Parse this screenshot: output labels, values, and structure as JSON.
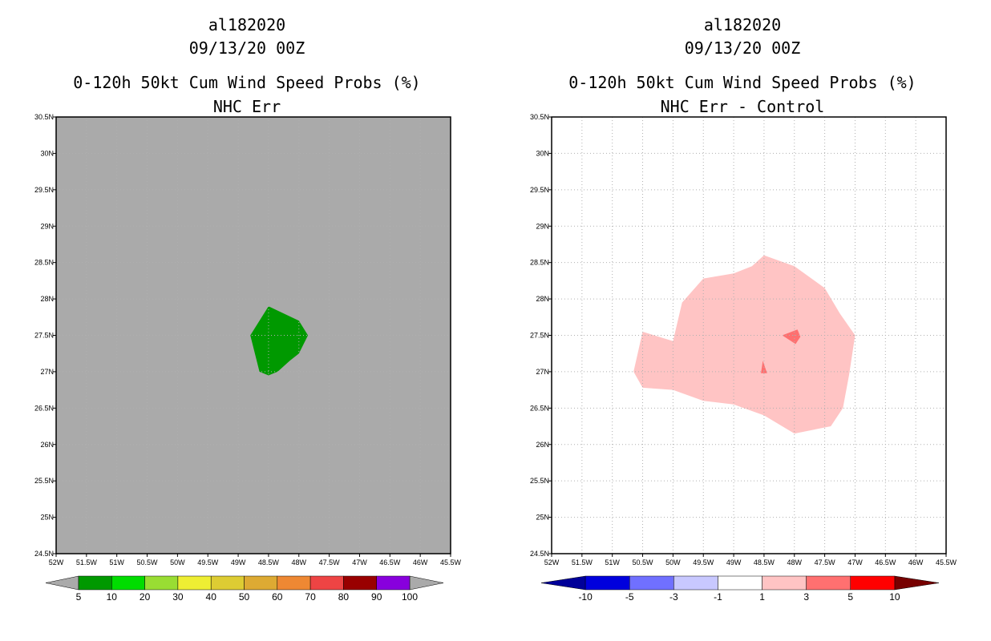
{
  "chart_data": [
    {
      "type": "contour-map",
      "title_lines": [
        "al182020",
        "09/13/20 00Z",
        "0-120h 50kt Cum Wind Speed Probs (%)",
        "NHC Err"
      ],
      "x_tick_labels": [
        "52W",
        "51.5W",
        "51W",
        "50.5W",
        "50W",
        "49.5W",
        "49W",
        "48.5W",
        "48W",
        "47.5W",
        "47W",
        "46.5W",
        "46W",
        "45.5W"
      ],
      "y_tick_labels": [
        "24.5N",
        "25N",
        "25.5N",
        "26N",
        "26.5N",
        "27N",
        "27.5N",
        "28N",
        "28.5N",
        "29N",
        "29.5N",
        "30N",
        "30.5N"
      ],
      "lon_range": [
        -52,
        -45.5
      ],
      "lat_range": [
        24.5,
        30.5
      ],
      "background_color": "#aaaaaa",
      "grid": true,
      "contours": [
        {
          "level": "5-10",
          "color": "#009900",
          "polygon": [
            [
              -48.5,
              27.9
            ],
            [
              -48.0,
              27.7
            ],
            [
              -47.85,
              27.5
            ],
            [
              -48.0,
              27.25
            ],
            [
              -48.15,
              27.15
            ],
            [
              -48.35,
              27.0
            ],
            [
              -48.5,
              26.95
            ],
            [
              -48.65,
              27.0
            ],
            [
              -48.8,
              27.5
            ],
            [
              -48.5,
              27.9
            ]
          ]
        }
      ],
      "colorbar": {
        "labels": [
          "5",
          "10",
          "20",
          "30",
          "40",
          "50",
          "60",
          "70",
          "80",
          "90",
          "100"
        ],
        "colors": [
          "#009900",
          "#00dd00",
          "#99dd33",
          "#eeee33",
          "#ddcc33",
          "#ddaa33",
          "#ee8833",
          "#ee4444",
          "#990000",
          "#8800dd"
        ],
        "low_arrow_color": "#aaaaaa",
        "high_arrow_color": "#aaaaaa"
      }
    },
    {
      "type": "contour-map",
      "title_lines": [
        "al182020",
        "09/13/20 00Z",
        "0-120h 50kt Cum Wind Speed Probs (%)",
        "NHC Err - Control"
      ],
      "x_tick_labels": [
        "52W",
        "51.5W",
        "51W",
        "50.5W",
        "50W",
        "49.5W",
        "49W",
        "48.5W",
        "48W",
        "47.5W",
        "47W",
        "46.5W",
        "46W",
        "45.5W"
      ],
      "y_tick_labels": [
        "24.5N",
        "25N",
        "25.5N",
        "26N",
        "26.5N",
        "27N",
        "27.5N",
        "28N",
        "28.5N",
        "29N",
        "29.5N",
        "30N",
        "30.5N"
      ],
      "lon_range": [
        -52,
        -45.5
      ],
      "lat_range": [
        24.5,
        30.5
      ],
      "background_color": "#ffffff",
      "grid": true,
      "contours": [
        {
          "level": "1-3",
          "color": "#ffc4c4",
          "polygon": [
            [
              -48.5,
              28.6
            ],
            [
              -48.0,
              28.45
            ],
            [
              -47.5,
              28.15
            ],
            [
              -47.25,
              27.8
            ],
            [
              -47.0,
              27.5
            ],
            [
              -47.1,
              26.95
            ],
            [
              -47.2,
              26.5
            ],
            [
              -47.4,
              26.25
            ],
            [
              -48.0,
              26.15
            ],
            [
              -48.5,
              26.4
            ],
            [
              -49.0,
              26.55
            ],
            [
              -49.5,
              26.6
            ],
            [
              -50.0,
              26.75
            ],
            [
              -50.5,
              26.78
            ],
            [
              -50.65,
              27.0
            ],
            [
              -50.5,
              27.55
            ],
            [
              -50.0,
              27.42
            ],
            [
              -49.85,
              27.95
            ],
            [
              -49.5,
              28.28
            ],
            [
              -49.0,
              28.35
            ],
            [
              -48.7,
              28.45
            ],
            [
              -48.5,
              28.6
            ]
          ]
        },
        {
          "level": "3-5",
          "color": "#ff7070",
          "polygon": [
            [
              -48.2,
              27.5
            ],
            [
              -47.95,
              27.58
            ],
            [
              -47.9,
              27.48
            ],
            [
              -47.98,
              27.38
            ],
            [
              -48.2,
              27.5
            ]
          ]
        },
        {
          "level": "3-5",
          "color": "#ff7070",
          "polygon": [
            [
              -48.52,
              27.15
            ],
            [
              -48.45,
              26.98
            ],
            [
              -48.55,
              26.98
            ],
            [
              -48.52,
              27.15
            ]
          ]
        }
      ],
      "colorbar": {
        "labels": [
          "-10",
          "-5",
          "-3",
          "-1",
          "1",
          "3",
          "5",
          "10"
        ],
        "colors": [
          "#0000dd",
          "#7070ff",
          "#c8c8ff",
          "#ffffff",
          "#ffc4c4",
          "#ff7070",
          "#ff0000"
        ],
        "low_arrow_color": "#000099",
        "high_arrow_color": "#770000"
      }
    }
  ]
}
